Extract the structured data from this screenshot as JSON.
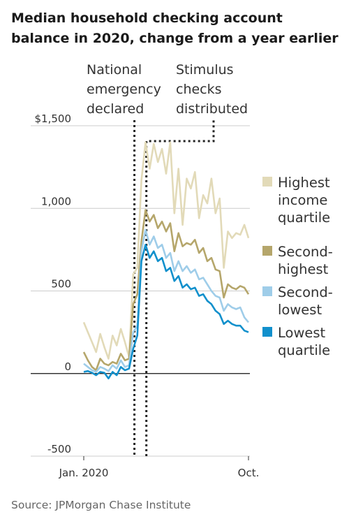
{
  "title": "Median household checking account balance in 2020, change from a year earlier",
  "source": "Source: JPMorgan Chase Institute",
  "annotations": [
    {
      "lines": [
        "National",
        "emergency",
        "declared"
      ]
    },
    {
      "lines": [
        "Stimulus",
        "checks",
        "distributed"
      ]
    }
  ],
  "chart_data": {
    "type": "line",
    "title": "Median household checking account balance in 2020, change from a year earlier",
    "xlabel": "",
    "ylabel": "",
    "x": [
      0,
      1,
      2,
      3,
      4,
      5,
      6,
      7,
      8,
      9,
      10,
      11,
      12,
      13,
      14,
      15,
      16,
      17,
      18,
      19,
      20,
      21,
      22,
      23,
      24,
      25,
      26,
      27,
      28,
      29,
      30,
      31,
      32,
      33,
      34,
      35,
      36,
      37,
      38,
      39,
      40
    ],
    "x_tick_labels": [
      {
        "x": 0,
        "label": "Jan. 2020"
      },
      {
        "x": 40,
        "label": "Oct."
      }
    ],
    "ylim": [
      -500,
      1500
    ],
    "y_ticks": [
      -500,
      0,
      500,
      1000,
      1500
    ],
    "y_tick_labels": [
      "-500",
      "0",
      "500",
      "1,000",
      "$1,500"
    ],
    "grid": true,
    "legend_position": "right",
    "series": [
      {
        "name": "Highest income quartile",
        "color": "#e2dab8",
        "values": [
          310,
          250,
          190,
          130,
          240,
          160,
          90,
          230,
          170,
          270,
          190,
          100,
          600,
          640,
          1170,
          1400,
          1240,
          1390,
          1280,
          1360,
          1210,
          1400,
          970,
          1240,
          900,
          1180,
          1120,
          1220,
          940,
          1080,
          1030,
          1180,
          970,
          1060,
          640,
          860,
          820,
          850,
          840,
          900,
          820
        ]
      },
      {
        "name": "Second-highest",
        "color": "#b5a66b",
        "values": [
          130,
          80,
          40,
          20,
          90,
          60,
          50,
          70,
          60,
          120,
          80,
          90,
          420,
          480,
          800,
          990,
          920,
          960,
          880,
          920,
          860,
          910,
          740,
          850,
          770,
          790,
          780,
          810,
          730,
          760,
          680,
          700,
          630,
          620,
          460,
          540,
          520,
          510,
          530,
          520,
          480
        ]
      },
      {
        "name": "Second-lowest",
        "color": "#9fcde9",
        "values": [
          60,
          40,
          20,
          10,
          40,
          30,
          15,
          50,
          30,
          80,
          40,
          50,
          250,
          290,
          740,
          870,
          780,
          830,
          760,
          780,
          700,
          730,
          620,
          680,
          620,
          650,
          610,
          630,
          570,
          580,
          540,
          500,
          470,
          460,
          380,
          420,
          400,
          390,
          400,
          340,
          310
        ]
      },
      {
        "name": "Lowest quartile",
        "color": "#1190cc",
        "values": [
          10,
          15,
          5,
          -10,
          10,
          5,
          -30,
          10,
          -10,
          40,
          20,
          30,
          150,
          230,
          680,
          780,
          700,
          740,
          680,
          700,
          620,
          640,
          560,
          590,
          520,
          540,
          510,
          520,
          470,
          480,
          440,
          420,
          380,
          360,
          300,
          320,
          300,
          290,
          290,
          260,
          250
        ]
      }
    ],
    "vlines": [
      {
        "x": 12.3,
        "label": "National emergency declared"
      },
      {
        "x": 15.2,
        "label": "Stimulus checks distributed"
      }
    ]
  }
}
